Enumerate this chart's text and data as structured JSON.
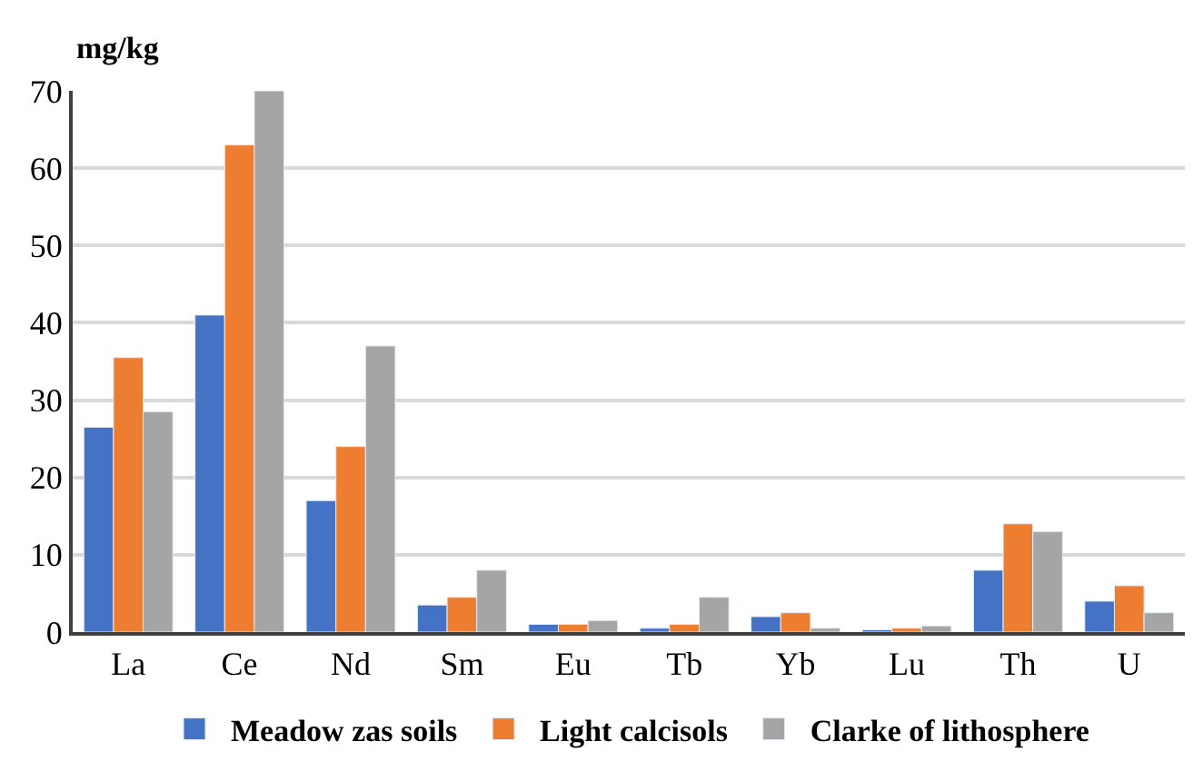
{
  "chart_data": {
    "type": "bar",
    "ylabel": "mg/kg",
    "categories": [
      "La",
      "Ce",
      "Nd",
      "Sm",
      "Eu",
      "Tb",
      "Yb",
      "Lu",
      "Th",
      "U"
    ],
    "series": [
      {
        "name": "Meadow zas soils",
        "color": "#4472c4",
        "values": [
          26.5,
          41,
          17,
          3.5,
          1,
          0.5,
          2,
          0.3,
          8,
          4
        ]
      },
      {
        "name": "Light calcisols",
        "color": "#ed7d31",
        "values": [
          35.5,
          63,
          24,
          4.5,
          1,
          1,
          2.5,
          0.5,
          14,
          6
        ]
      },
      {
        "name": "Clarke of lithosphere",
        "color": "#a5a5a5",
        "values": [
          28.5,
          70,
          37,
          8,
          1.5,
          4.5,
          0.5,
          0.8,
          13,
          2.5
        ]
      }
    ],
    "ylim": [
      0,
      70
    ],
    "yticks": [
      0,
      10,
      20,
      30,
      40,
      50,
      60,
      70
    ],
    "grid": "y",
    "legend": "bottom"
  }
}
